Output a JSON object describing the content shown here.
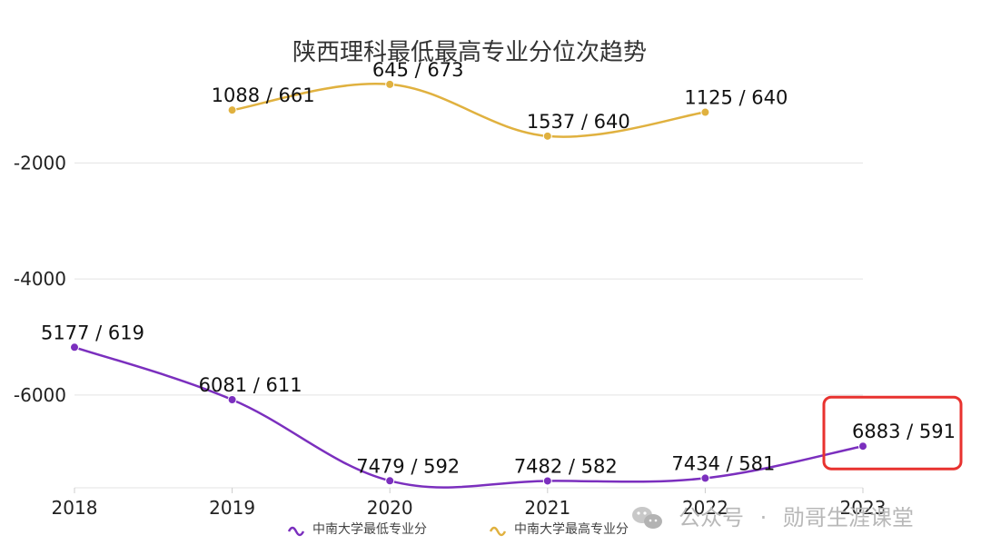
{
  "chart_data": {
    "type": "line",
    "title": "陕西理科最低最高专业分位次趋势",
    "xlabel": "",
    "ylabel": "",
    "categories": [
      "2018",
      "2019",
      "2020",
      "2021",
      "2022",
      "2023"
    ],
    "yticks": [
      -2000,
      -4000,
      -6000
    ],
    "ylim": [
      -7600,
      -600
    ],
    "grid": true,
    "legend_position": "bottom",
    "series": [
      {
        "name": "中南大学最低专业分",
        "color": "#7b2fbe",
        "values": [
          -5177,
          -6081,
          -7479,
          -7482,
          -7434,
          -6883
        ],
        "labels": [
          "5177 / 619",
          "6081 / 611",
          "7479 / 592",
          "7482 / 582",
          "7434 / 581",
          "6883 / 591"
        ]
      },
      {
        "name": "中南大学最高专业分",
        "color": "#e0b13f",
        "values": [
          null,
          -1088,
          -645,
          -1537,
          -1125,
          null
        ],
        "labels": [
          null,
          "1088 / 661",
          "645 / 673",
          "1537 / 640",
          "1125 / 640",
          null
        ]
      }
    ],
    "highlight": {
      "category": "2023",
      "series": 0,
      "color": "#e8322f"
    }
  },
  "watermark": {
    "prefix": "公众号",
    "separator": "·",
    "name": "勋哥生涯课堂",
    "icon": "wechat-icon"
  }
}
